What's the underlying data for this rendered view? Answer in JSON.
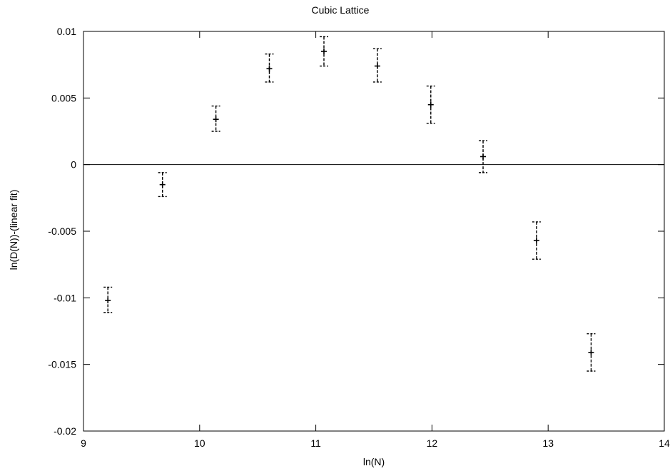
{
  "chart_data": {
    "type": "scatter",
    "title": "Cubic Lattice",
    "xlabel": "ln(N)",
    "ylabel": "ln(D(N))-(linear fit)",
    "xlim": [
      9,
      14
    ],
    "ylim": [
      -0.02,
      0.01
    ],
    "xticks": [
      9,
      10,
      11,
      12,
      13,
      14
    ],
    "xtick_labels": [
      "9",
      "10",
      "11",
      "12",
      "13",
      "14"
    ],
    "yticks": [
      -0.02,
      -0.015,
      -0.01,
      -0.005,
      0,
      0.005,
      0.01
    ],
    "ytick_labels": [
      "-0.02",
      "-0.015",
      "-0.01",
      "-0.005",
      "0",
      "0.005",
      "0.01"
    ],
    "grid": false,
    "reference_line_y": 0,
    "error_bar_style": "dashed",
    "points": [
      {
        "x": 9.21,
        "y": -0.0102,
        "ylow": -0.0111,
        "yhigh": -0.0092
      },
      {
        "x": 9.68,
        "y": -0.0015,
        "ylow": -0.0024,
        "yhigh": -0.0006
      },
      {
        "x": 10.14,
        "y": 0.0034,
        "ylow": 0.0025,
        "yhigh": 0.0044
      },
      {
        "x": 10.6,
        "y": 0.0072,
        "ylow": 0.0062,
        "yhigh": 0.0083
      },
      {
        "x": 11.07,
        "y": 0.0085,
        "ylow": 0.0074,
        "yhigh": 0.0096
      },
      {
        "x": 11.53,
        "y": 0.0074,
        "ylow": 0.0062,
        "yhigh": 0.0087
      },
      {
        "x": 11.99,
        "y": 0.0045,
        "ylow": 0.0031,
        "yhigh": 0.0059
      },
      {
        "x": 12.44,
        "y": 0.0006,
        "ylow": -0.0006,
        "yhigh": 0.0018
      },
      {
        "x": 12.9,
        "y": -0.0057,
        "ylow": -0.0071,
        "yhigh": -0.0043
      },
      {
        "x": 13.37,
        "y": -0.0141,
        "ylow": -0.0155,
        "yhigh": -0.0127
      }
    ]
  }
}
